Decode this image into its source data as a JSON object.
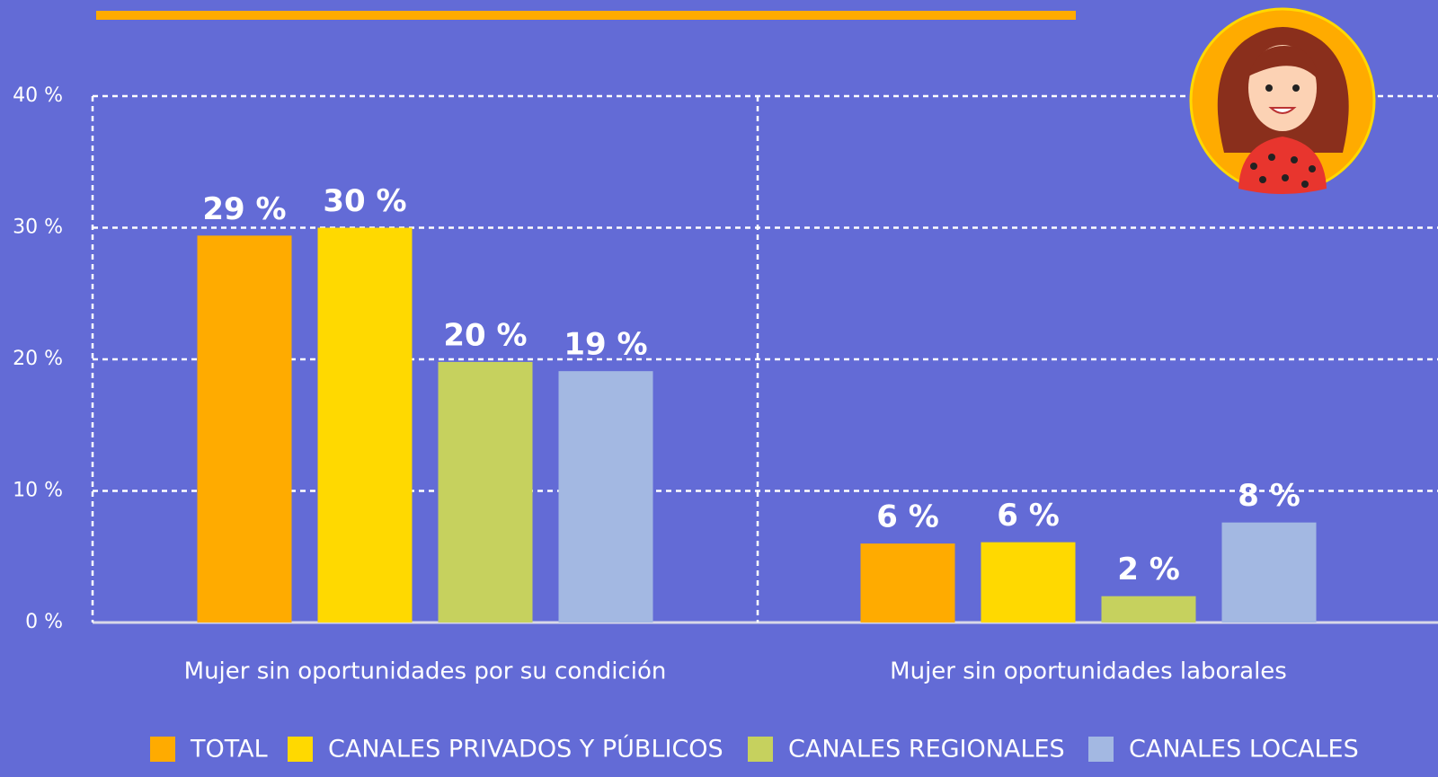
{
  "chart_data": {
    "type": "bar",
    "categories": [
      "Mujer sin oportunidades por su condición",
      "Mujer sin oportunidades laborales"
    ],
    "series": [
      {
        "name": "TOTAL",
        "color": "#ffab00",
        "values": [
          29.4,
          6.0
        ],
        "value_labels": [
          "29 %",
          "6 %"
        ]
      },
      {
        "name": "CANALES PRIVADOS Y PÚBLICOS",
        "color": "#ffd900",
        "values": [
          30,
          6.1
        ],
        "value_labels": [
          "30 %",
          "6 %"
        ]
      },
      {
        "name": "CANALES REGIONALES",
        "color": "#c6d15e",
        "values": [
          19.8,
          2.0
        ],
        "value_labels": [
          "20 %",
          "2 %"
        ]
      },
      {
        "name": "CANALES LOCALES",
        "color": "#a3b8e2",
        "values": [
          19.1,
          7.6
        ],
        "value_labels": [
          "19 %",
          "8 %"
        ]
      }
    ],
    "ylim": [
      0,
      40
    ],
    "yticks": [
      {
        "value": 0,
        "label": "0 %"
      },
      {
        "value": 10,
        "label": "10 %"
      },
      {
        "value": 20,
        "label": "20 %"
      },
      {
        "value": 30,
        "label": "30 %"
      },
      {
        "value": 40,
        "label": "40 %"
      }
    ],
    "grid": true
  }
}
